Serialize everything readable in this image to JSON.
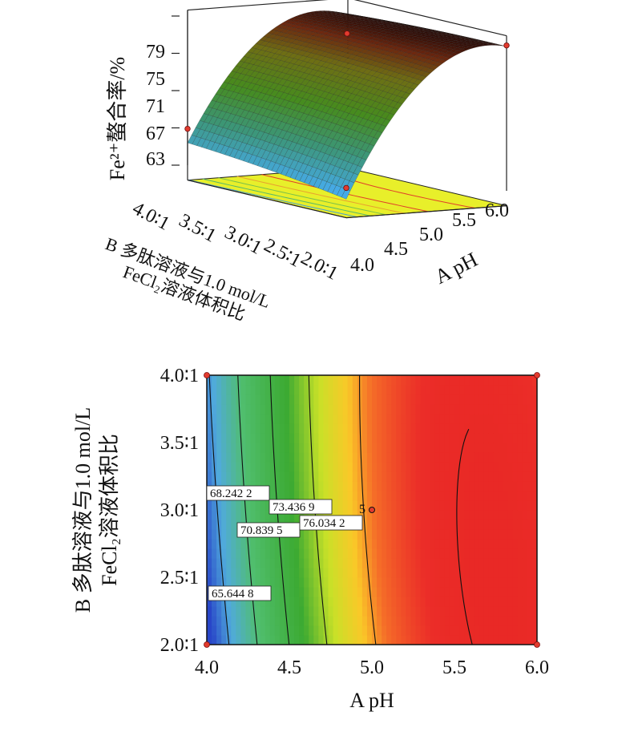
{
  "chart_data": [
    {
      "type": "surface",
      "panel": "response-surface-3d",
      "x_axis": {
        "label": "A pH",
        "range": [
          4.0,
          6.0
        ],
        "ticks": [
          "4.0",
          "4.5",
          "5.0",
          "5.5",
          "6.0"
        ]
      },
      "y_axis": {
        "label_line1": "B 多肽溶液与1.0 mol/L",
        "label_line2": "FeCl₂溶液体积比",
        "range": [
          2.0,
          4.0
        ],
        "ticks": [
          "2.0∶1",
          "2.5∶1",
          "3.0∶1",
          "3.5∶1",
          "4.0∶1"
        ]
      },
      "z_axis": {
        "label": "Fe²⁺螯合率/%",
        "range": [
          63,
          79
        ],
        "ticks": [
          "63",
          "67",
          "71",
          "75",
          "79"
        ]
      },
      "design_points": [
        {
          "x": 4.0,
          "y": 2.0,
          "z": 64.6
        },
        {
          "x": 4.0,
          "y": 4.0,
          "z": 66.9
        },
        {
          "x": 5.0,
          "y": 3.0,
          "z": 78.5
        },
        {
          "x": 6.0,
          "y": 2.0,
          "z": 78.6
        }
      ]
    },
    {
      "type": "contour",
      "panel": "contour-plot",
      "x_axis": {
        "label": "A pH",
        "range": [
          4.0,
          6.0
        ],
        "ticks": [
          "4.0",
          "4.5",
          "5.0",
          "5.5",
          "6.0"
        ]
      },
      "y_axis": {
        "label_line1": "B 多肽溶液与1.0 mol/L",
        "label_line2": "FeCl₂溶液体积比",
        "range": [
          2.0,
          4.0
        ],
        "ticks": [
          "2.0∶1",
          "2.5∶1",
          "3.0∶1",
          "3.5∶1",
          "4.0∶1"
        ]
      },
      "contour_levels": [
        {
          "value": 65.6448,
          "label": "65.644 8"
        },
        {
          "value": 68.2422,
          "label": "68.242 2"
        },
        {
          "value": 70.8395,
          "label": "70.839 5"
        },
        {
          "value": 73.4369,
          "label": "73.436 9"
        },
        {
          "value": 76.0342,
          "label": "76.034 2"
        }
      ],
      "center_point": {
        "x": 5.0,
        "y": 3.0,
        "replicates": "5"
      },
      "corner_points": [
        {
          "x": 4.0,
          "y": 2.0
        },
        {
          "x": 4.0,
          "y": 4.0
        },
        {
          "x": 6.0,
          "y": 2.0
        },
        {
          "x": 6.0,
          "y": 4.0
        }
      ]
    }
  ]
}
